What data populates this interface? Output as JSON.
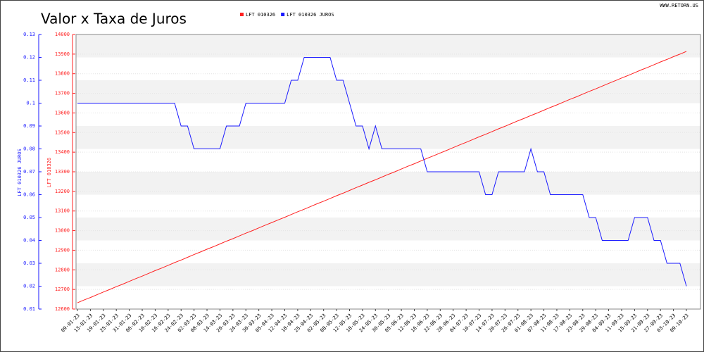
{
  "chart_data": {
    "type": "line",
    "title": "Valor x Taxa de Juros",
    "credit": "WWW.RETORN.US",
    "y_label": "LFT 010326",
    "y2_label": "LFT 010326 JUROS",
    "grid": true,
    "categories": [
      "09-01-23",
      null,
      "13-01-23",
      null,
      "19-01-23",
      null,
      "25-01-23",
      null,
      "31-01-23",
      null,
      "06-02-23",
      null,
      "10-02-23",
      null,
      "16-02-23",
      null,
      "24-02-23",
      null,
      "02-03-23",
      null,
      "08-03-23",
      null,
      "14-03-23",
      null,
      "20-03-23",
      null,
      "24-03-23",
      null,
      "30-03-23",
      null,
      "05-04-23",
      null,
      "12-04-23",
      null,
      "18-04-23",
      null,
      "25-04-23",
      null,
      "02-05-23",
      null,
      "08-05-23",
      null,
      "12-05-23",
      null,
      "18-05-23",
      null,
      "24-05-23",
      null,
      "30-05-23",
      null,
      "05-06-23",
      null,
      "12-06-23",
      null,
      "16-06-23",
      null,
      "22-06-23",
      null,
      "28-06-23",
      null,
      "04-07-23",
      null,
      "10-07-23",
      null,
      "14-07-23",
      null,
      "20-07-23",
      null,
      "26-07-23",
      null,
      "01-08-23",
      null,
      "07-08-23",
      null,
      "11-08-23",
      null,
      "17-08-23",
      null,
      "23-08-23",
      null,
      "29-08-23",
      null,
      "04-09-23",
      null,
      "11-09-23",
      null,
      "15-09-23",
      null,
      "21-09-23",
      null,
      "27-09-23",
      null,
      "03-10-23",
      null,
      "09-10-23"
    ],
    "series": [
      {
        "name": "LFT 010326",
        "color": "#ff2020",
        "values": [
          12632,
          12646,
          12659,
          12673,
          12687,
          12700,
          12714,
          12727,
          12741,
          12755,
          12768,
          12782,
          12796,
          12809,
          12823,
          12837,
          12850,
          12864,
          12878,
          12891,
          12905,
          12918,
          12932,
          12946,
          12959,
          12973,
          12987,
          13000,
          13014,
          13028,
          13041,
          13055,
          13068,
          13082,
          13096,
          13109,
          13123,
          13137,
          13150,
          13164,
          13178,
          13191,
          13205,
          13219,
          13232,
          13246,
          13259,
          13273,
          13287,
          13300,
          13314,
          13328,
          13341,
          13355,
          13369,
          13382,
          13396,
          13409,
          13423,
          13437,
          13450,
          13464,
          13478,
          13491,
          13505,
          13519,
          13532,
          13546,
          13560,
          13573,
          13587,
          13600,
          13614,
          13628,
          13641,
          13655,
          13669,
          13682,
          13696,
          13710,
          13723,
          13737,
          13751,
          13764,
          13778,
          13791,
          13805,
          13819,
          13832,
          13846,
          13860,
          13873,
          13887,
          13900,
          13914
        ]
      },
      {
        "name": "LFT 010326 JUROS",
        "color": "#1a1aff",
        "axis": "y2",
        "values": [
          0.1,
          0.1,
          0.1,
          0.1,
          0.1,
          0.1,
          0.1,
          0.1,
          0.1,
          0.1,
          0.1,
          0.1,
          0.1,
          0.1,
          0.1,
          0.1,
          0.09,
          0.09,
          0.08,
          0.08,
          0.08,
          0.08,
          0.08,
          0.09,
          0.09,
          0.09,
          0.1,
          0.1,
          0.1,
          0.1,
          0.1,
          0.1,
          0.1,
          0.11,
          0.11,
          0.12,
          0.12,
          0.12,
          0.12,
          0.12,
          0.11,
          0.11,
          0.1,
          0.09,
          0.09,
          0.08,
          0.09,
          0.08,
          0.08,
          0.08,
          0.08,
          0.08,
          0.08,
          0.08,
          0.07,
          0.07,
          0.07,
          0.07,
          0.07,
          0.07,
          0.07,
          0.07,
          0.07,
          0.06,
          0.06,
          0.07,
          0.07,
          0.07,
          0.07,
          0.07,
          0.08,
          0.07,
          0.07,
          0.06,
          0.06,
          0.06,
          0.06,
          0.06,
          0.06,
          0.05,
          0.05,
          0.04,
          0.04,
          0.04,
          0.04,
          0.04,
          0.05,
          0.05,
          0.05,
          0.04,
          0.04,
          0.03,
          0.03,
          0.03,
          0.02
        ]
      }
    ],
    "ylim": [
      12600,
      14000
    ],
    "yticks": [
      12600,
      12700,
      12800,
      12900,
      13000,
      13100,
      13200,
      13300,
      13400,
      13500,
      13600,
      13700,
      13800,
      13900,
      14000
    ],
    "y2lim": [
      0.01,
      0.13
    ],
    "y2ticks": [
      0.01,
      0.02,
      0.03,
      0.04,
      0.05,
      0.06,
      0.07,
      0.08,
      0.09,
      0.1,
      0.11,
      0.12,
      0.13
    ]
  }
}
